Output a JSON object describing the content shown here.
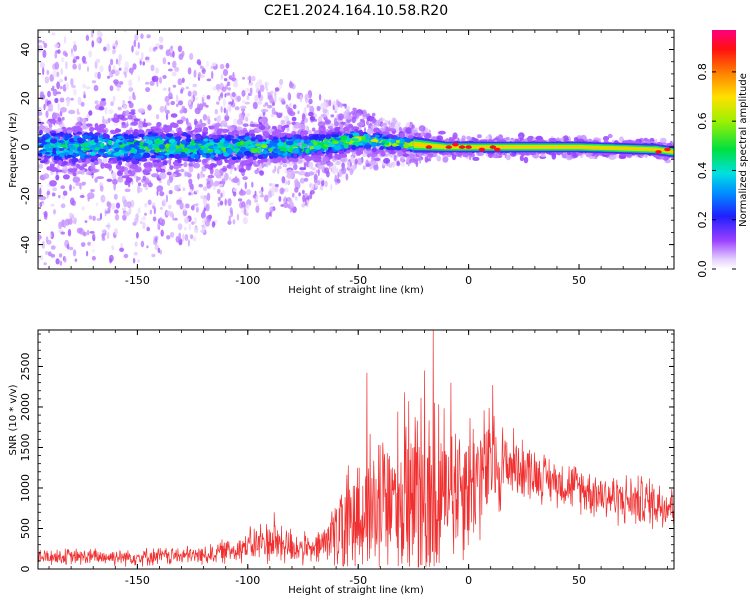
{
  "title": "C2E1.2024.164.10.58.R20",
  "chart_data": [
    {
      "type": "heatmap",
      "xlabel": "Height of straight line (km)",
      "ylabel": "Frequency (Hz)",
      "xlim": [
        -195,
        93
      ],
      "ylim": [
        -50,
        48
      ],
      "xticks": [
        -150,
        -100,
        -50,
        0,
        50
      ],
      "yticks": [
        -40,
        -20,
        0,
        20,
        40
      ],
      "grid": false,
      "colorbar": {
        "label": "Normalized spectral amplitude",
        "range": [
          0.0,
          0.97
        ],
        "ticks": [
          0.0,
          0.2,
          0.4,
          0.6,
          0.8
        ],
        "tick_labels": [
          "0.0",
          "0.2",
          "0.4",
          "0.6",
          "0.8"
        ],
        "colormap": "rainbow"
      },
      "band_profile": [
        {
          "x": -195,
          "center": 0,
          "core_halfwidth": 9,
          "scatter_halfwidth": 48,
          "peak": 0.45
        },
        {
          "x": -150,
          "center": 0,
          "core_halfwidth": 9,
          "scatter_halfwidth": 48,
          "peak": 0.5
        },
        {
          "x": -100,
          "center": 0,
          "core_halfwidth": 7,
          "scatter_halfwidth": 30,
          "peak": 0.55
        },
        {
          "x": -75,
          "center": 0,
          "core_halfwidth": 6,
          "scatter_halfwidth": 25,
          "peak": 0.55
        },
        {
          "x": -50,
          "center": 3,
          "core_halfwidth": 5,
          "scatter_halfwidth": 12,
          "peak": 0.6
        },
        {
          "x": -25,
          "center": 1,
          "core_halfwidth": 3,
          "scatter_halfwidth": 8,
          "peak": 0.7
        },
        {
          "x": -10,
          "center": 0,
          "core_halfwidth": 2,
          "scatter_halfwidth": 4,
          "peak": 0.9
        },
        {
          "x": 10,
          "center": 0,
          "core_halfwidth": 2,
          "scatter_halfwidth": 4,
          "peak": 0.9
        },
        {
          "x": 50,
          "center": 0,
          "core_halfwidth": 2,
          "scatter_halfwidth": 3,
          "peak": 0.65
        },
        {
          "x": 85,
          "center": -1,
          "core_halfwidth": 2,
          "scatter_halfwidth": 3,
          "peak": 0.85
        },
        {
          "x": 93,
          "center": -2,
          "core_halfwidth": 2,
          "scatter_halfwidth": 3,
          "peak": 0.7
        }
      ]
    },
    {
      "type": "line",
      "xlabel": "Height of straight line (km)",
      "ylabel": "SNR (10 * v/v)",
      "xlim": [
        -195,
        93
      ],
      "ylim": [
        0,
        2950
      ],
      "xticks": [
        -150,
        -100,
        -50,
        0,
        50
      ],
      "yticks": [
        0,
        500,
        1000,
        1500,
        2000,
        2500
      ],
      "grid": false,
      "color": "#f03030",
      "series_envelope": [
        {
          "x": -195,
          "base": 150,
          "spread": 120
        },
        {
          "x": -150,
          "base": 150,
          "spread": 130
        },
        {
          "x": -120,
          "base": 170,
          "spread": 140
        },
        {
          "x": -105,
          "base": 250,
          "spread": 200
        },
        {
          "x": -90,
          "base": 350,
          "spread": 350
        },
        {
          "x": -80,
          "base": 280,
          "spread": 300
        },
        {
          "x": -70,
          "base": 220,
          "spread": 180
        },
        {
          "x": -60,
          "base": 450,
          "spread": 600
        },
        {
          "x": -50,
          "base": 650,
          "spread": 1000
        },
        {
          "x": -40,
          "base": 800,
          "spread": 1200
        },
        {
          "x": -30,
          "base": 850,
          "spread": 1300
        },
        {
          "x": -20,
          "base": 900,
          "spread": 1500
        },
        {
          "x": -10,
          "base": 1000,
          "spread": 1200
        },
        {
          "x": 0,
          "base": 1100,
          "spread": 1100
        },
        {
          "x": 10,
          "base": 1250,
          "spread": 900
        },
        {
          "x": 20,
          "base": 1300,
          "spread": 500
        },
        {
          "x": 35,
          "base": 1120,
          "spread": 350
        },
        {
          "x": 50,
          "base": 1000,
          "spread": 350
        },
        {
          "x": 70,
          "base": 850,
          "spread": 380
        },
        {
          "x": 93,
          "base": 800,
          "spread": 400
        }
      ],
      "peaks": [
        {
          "x": -16,
          "y": 2950
        },
        {
          "x": -20,
          "y": 2450
        },
        {
          "x": -46,
          "y": 2420
        },
        {
          "x": -29,
          "y": 2180
        },
        {
          "x": -8,
          "y": 2300
        },
        {
          "x": 11,
          "y": 2270
        },
        {
          "x": -88,
          "y": 700
        }
      ]
    }
  ]
}
